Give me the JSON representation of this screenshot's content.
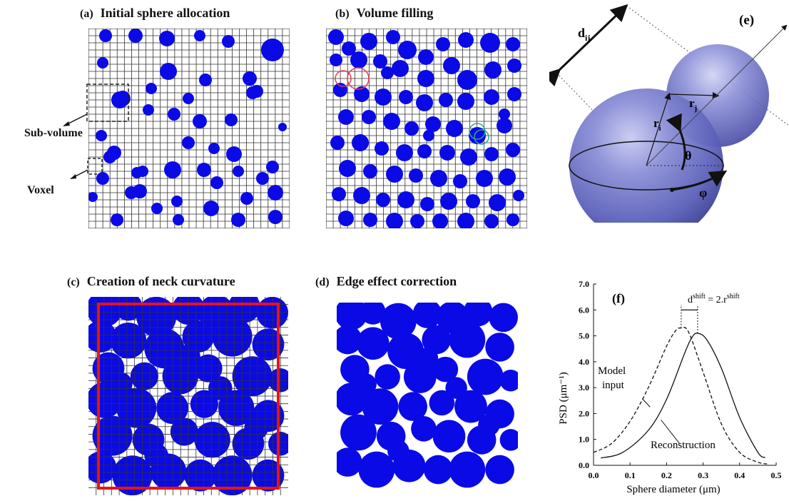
{
  "panels": {
    "a": {
      "tag": "(a)",
      "title": "Initial sphere allocation",
      "callouts": {
        "subvolume": "Sub-volume",
        "voxel": "Voxel"
      }
    },
    "b": {
      "tag": "(b)",
      "title": "Volume filling"
    },
    "c": {
      "tag": "(c)",
      "title": "Creation of neck curvature"
    },
    "d": {
      "tag": "(d)",
      "title": "Edge effect correction"
    },
    "e": {
      "tag": "(e)",
      "labels": {
        "dij": "d",
        "dij_sub": "ij",
        "ri": "r",
        "ri_sub": "i",
        "rj": "r",
        "rj_sub": "j",
        "theta": "θ",
        "phi": "φ"
      }
    },
    "f": {
      "tag": "(f)"
    }
  },
  "colors": {
    "particle": "#0a0ae6",
    "highlight_box": "#ee1111",
    "sphere": "#6b6fc4",
    "grid": "#333333"
  },
  "chart_data": {
    "type": "line",
    "title": "",
    "xlabel": "Sphere diameter (μm)",
    "ylabel": "PSD (μm⁻¹)",
    "xlim": [
      0.0,
      0.5
    ],
    "ylim": [
      0.0,
      7.0
    ],
    "x_ticks": [
      "0.0",
      "0.1",
      "0.2",
      "0.3",
      "0.4",
      "0.5"
    ],
    "y_ticks": [
      "0.0",
      "1.0",
      "2.0",
      "3.0",
      "4.0",
      "5.0",
      "6.0",
      "7.0"
    ],
    "grid": false,
    "annotations": {
      "model_input_1": "Model",
      "model_input_2": "input",
      "reconstruction": "Reconstruction",
      "shift_lhs": "d",
      "shift_lhs_sup": "shift",
      "shift_mid": " = 2.r",
      "shift_rhs_sup": "shift"
    },
    "series": [
      {
        "name": "Model input",
        "style": "dashed",
        "x": [
          0.0,
          0.05,
          0.1,
          0.15,
          0.2,
          0.225,
          0.24,
          0.26,
          0.3,
          0.35,
          0.4,
          0.45,
          0.48
        ],
        "y": [
          0.5,
          0.85,
          1.7,
          3.0,
          4.6,
          5.2,
          5.3,
          5.15,
          3.6,
          1.6,
          0.5,
          0.12,
          0.05
        ]
      },
      {
        "name": "Reconstruction",
        "style": "solid",
        "x": [
          0.02,
          0.08,
          0.15,
          0.2,
          0.25,
          0.27,
          0.285,
          0.31,
          0.35,
          0.4,
          0.45,
          0.47
        ],
        "y": [
          0.28,
          0.5,
          1.35,
          2.55,
          4.35,
          4.95,
          5.1,
          4.85,
          3.75,
          1.85,
          0.5,
          0.3
        ]
      }
    ]
  }
}
